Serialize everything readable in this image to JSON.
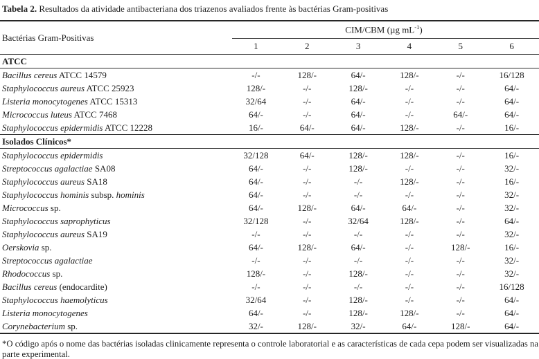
{
  "caption": {
    "label": "Tabela 2.",
    "text": " Resultados da atividade antibacteriana dos triazenos avaliados frente às bactérias Gram-positivas"
  },
  "table": {
    "row_header": "Bactérias Gram-Positivas",
    "group_header": {
      "prefix": "CIM/CBM (µg mL",
      "sup": "-1",
      "suffix": ")"
    },
    "columns": [
      "1",
      "2",
      "3",
      "4",
      "5",
      "6"
    ],
    "sections": [
      {
        "name": "ATCC",
        "rows": [
          {
            "name": [
              {
                "t": "Bacillus cereus",
                "i": true
              },
              {
                "t": " ATCC 14579",
                "i": false
              }
            ],
            "values": [
              "-/-",
              "128/-",
              "64/-",
              "128/-",
              "-/-",
              "16/128"
            ]
          },
          {
            "name": [
              {
                "t": "Staphylococcus aureus",
                "i": true
              },
              {
                "t": " ATCC 25923",
                "i": false
              }
            ],
            "values": [
              "128/-",
              "-/-",
              "128/-",
              "-/-",
              "-/-",
              "64/-"
            ]
          },
          {
            "name": [
              {
                "t": "Listeria monocytogenes",
                "i": true
              },
              {
                "t": " ATCC 15313",
                "i": false
              }
            ],
            "values": [
              "32/64",
              "-/-",
              "64/-",
              "-/-",
              "-/-",
              "64/-"
            ]
          },
          {
            "name": [
              {
                "t": "Micrococcus luteus",
                "i": true
              },
              {
                "t": " ATCC 7468",
                "i": false
              }
            ],
            "values": [
              "64/-",
              "-/-",
              "64/-",
              "-/-",
              "64/-",
              "64/-"
            ]
          },
          {
            "name": [
              {
                "t": "Staphylococcus epidermidis",
                "i": true
              },
              {
                "t": " ATCC 12228",
                "i": false
              }
            ],
            "values": [
              "16/-",
              "64/-",
              "64/-",
              "128/-",
              "-/-",
              "16/-"
            ]
          }
        ]
      },
      {
        "name": "Isolados Clínicos*",
        "rows": [
          {
            "name": [
              {
                "t": "Staphylococcus epidermidis",
                "i": true
              }
            ],
            "values": [
              "32/128",
              "64/-",
              "128/-",
              "128/-",
              "-/-",
              "16/-"
            ]
          },
          {
            "name": [
              {
                "t": "Streptococcus agalactiae",
                "i": true
              },
              {
                "t": " SA08",
                "i": false
              }
            ],
            "values": [
              "64/-",
              "-/-",
              "128/-",
              "-/-",
              "-/-",
              "32/-"
            ]
          },
          {
            "name": [
              {
                "t": "Staphylococcus aureus",
                "i": true
              },
              {
                "t": " SA18",
                "i": false
              }
            ],
            "values": [
              "64/-",
              "-/-",
              "-/-",
              "128/-",
              "-/-",
              "16/-"
            ]
          },
          {
            "name": [
              {
                "t": "Staphylococcus hominis",
                "i": true
              },
              {
                "t": " subsp. ",
                "i": false
              },
              {
                "t": "hominis",
                "i": true
              }
            ],
            "values": [
              "64/-",
              "-/-",
              "-/-",
              "-/-",
              "-/-",
              "32/-"
            ]
          },
          {
            "name": [
              {
                "t": "Micrococcus",
                "i": true
              },
              {
                "t": " sp.",
                "i": false
              }
            ],
            "values": [
              "64/-",
              "128/-",
              "64/-",
              "64/-",
              "-/-",
              "32/-"
            ]
          },
          {
            "name": [
              {
                "t": "Staphylococcus saprophyticus",
                "i": true
              }
            ],
            "values": [
              "32/128",
              "-/-",
              "32/64",
              "128/-",
              "-/-",
              "64/-"
            ]
          },
          {
            "name": [
              {
                "t": "Staphylococcus aureus",
                "i": true
              },
              {
                "t": " SA19",
                "i": false
              }
            ],
            "values": [
              "-/-",
              "-/-",
              "-/-",
              "-/-",
              "-/-",
              "32/-"
            ]
          },
          {
            "name": [
              {
                "t": "Oerskovia",
                "i": true
              },
              {
                "t": " sp.",
                "i": false
              }
            ],
            "values": [
              "64/-",
              "128/-",
              "64/-",
              "-/-",
              "128/-",
              "16/-"
            ]
          },
          {
            "name": [
              {
                "t": "Streptococcus agalactiae",
                "i": true
              }
            ],
            "values": [
              "-/-",
              "-/-",
              "-/-",
              "-/-",
              "-/-",
              "32/-"
            ]
          },
          {
            "name": [
              {
                "t": "Rhodococcus",
                "i": true
              },
              {
                "t": " sp.",
                "i": false
              }
            ],
            "values": [
              "128/-",
              "-/-",
              "128/-",
              "-/-",
              "-/-",
              "32/-"
            ]
          },
          {
            "name": [
              {
                "t": "Bacillus cereus",
                "i": true
              },
              {
                "t": " (endocardite)",
                "i": false
              }
            ],
            "values": [
              "-/-",
              "-/-",
              "-/-",
              "-/-",
              "-/-",
              "16/128"
            ]
          },
          {
            "name": [
              {
                "t": "Staphylococcus haemolyticus",
                "i": true
              }
            ],
            "values": [
              "32/64",
              "-/-",
              "128/-",
              "-/-",
              "-/-",
              "64/-"
            ]
          },
          {
            "name": [
              {
                "t": "Listeria monocytogenes",
                "i": true
              }
            ],
            "values": [
              "64/-",
              "-/-",
              "128/-",
              "128/-",
              "-/-",
              "64/-"
            ]
          },
          {
            "name": [
              {
                "t": "Corynebacterium",
                "i": true
              },
              {
                "t": " sp.",
                "i": false
              }
            ],
            "values": [
              "32/-",
              "128/-",
              "32/-",
              "64/-",
              "128/-",
              "64/-"
            ]
          }
        ]
      }
    ]
  },
  "footnote": "*O código após o nome das bactérias isoladas clinicamente representa o controle laboratorial e as características de cada cepa podem ser visualizadas na parte experimental."
}
